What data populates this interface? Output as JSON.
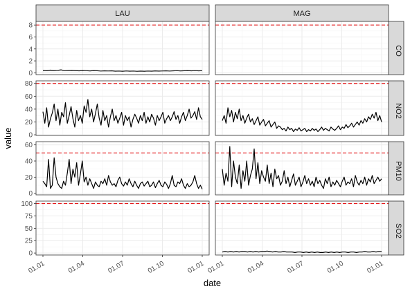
{
  "chart_data": {
    "type": "line",
    "layout": "facet_grid",
    "xlabel": "date",
    "ylabel": "value",
    "columns": [
      "LAU",
      "MAG"
    ],
    "rows": [
      "CO",
      "NO2",
      "PM10",
      "SO2"
    ],
    "x_ticks": [
      "01.01",
      "01.04",
      "01.07",
      "01.10",
      "01.01"
    ],
    "x_range": [
      "2018-01-01",
      "2019-01-01"
    ],
    "limit_color": "#e41a1c",
    "line_color": "#000000",
    "strip_color": "#d9d9d9",
    "panels_config": [
      {
        "row": "CO",
        "ylim": [
          -0.3,
          8.6
        ],
        "y_ticks": [
          0,
          2,
          4,
          6,
          8
        ],
        "limit": 8
      },
      {
        "row": "NO2",
        "ylim": [
          -1,
          84
        ],
        "y_ticks": [
          0,
          20,
          40,
          60,
          80
        ],
        "limit": 80
      },
      {
        "row": "PM10",
        "ylim": [
          -2,
          64
        ],
        "y_ticks": [
          0,
          20,
          40,
          60
        ],
        "limit": 50
      },
      {
        "row": "SO2",
        "ylim": [
          -4,
          105
        ],
        "y_ticks": [
          0,
          25,
          50,
          75,
          100
        ],
        "limit": 100
      }
    ],
    "series": [
      {
        "row": "CO",
        "column": "LAU",
        "values": [
          0.4,
          0.35,
          0.45,
          0.38,
          0.42,
          0.5,
          0.36,
          0.4,
          0.44,
          0.38,
          0.34,
          0.4,
          0.36,
          0.32,
          0.38,
          0.35,
          0.3,
          0.34,
          0.31,
          0.33,
          0.28,
          0.3,
          0.27,
          0.31,
          0.28,
          0.3,
          0.26,
          0.29,
          0.27,
          0.3,
          0.28,
          0.32,
          0.29,
          0.31,
          0.34,
          0.3,
          0.33,
          0.36,
          0.32,
          0.35,
          0.38,
          0.34,
          0.37,
          0.33,
          0.36
        ]
      },
      {
        "row": "NO2",
        "column": "LAU",
        "values": [
          36,
          18,
          42,
          12,
          25,
          34,
          48,
          22,
          40,
          15,
          35,
          28,
          50,
          18,
          30,
          44,
          25,
          12,
          38,
          22,
          30,
          18,
          45,
          35,
          55,
          28,
          40,
          20,
          33,
          48,
          26,
          15,
          38,
          22,
          30,
          12,
          28,
          40,
          22,
          30,
          18,
          26,
          35,
          15,
          30,
          22,
          28,
          12,
          24,
          32,
          26,
          18,
          30,
          22,
          35,
          18,
          28,
          20,
          32,
          26,
          15,
          30,
          22,
          28,
          35,
          18,
          25,
          30,
          22,
          28,
          36,
          24,
          30,
          18,
          28,
          35,
          22,
          30,
          40,
          26,
          30,
          36,
          24,
          42,
          28,
          24
        ]
      },
      {
        "row": "NO2",
        "column": "MAG",
        "values": [
          22,
          30,
          18,
          42,
          28,
          38,
          20,
          35,
          25,
          40,
          22,
          30,
          18,
          26,
          32,
          20,
          25,
          16,
          22,
          28,
          15,
          20,
          24,
          14,
          18,
          22,
          12,
          16,
          20,
          10,
          14,
          12,
          8,
          10,
          6,
          12,
          8,
          10,
          5,
          9,
          7,
          11,
          6,
          8,
          10,
          5,
          8,
          6,
          10,
          7,
          9,
          5,
          8,
          12,
          7,
          10,
          8,
          6,
          12,
          9,
          7,
          10,
          14,
          8,
          12,
          10,
          16,
          11,
          14,
          18,
          12,
          16,
          20,
          15,
          22,
          18,
          25,
          20,
          28,
          24,
          32,
          26,
          35,
          22,
          30,
          20
        ]
      },
      {
        "row": "PM10",
        "column": "LAU",
        "values": [
          15,
          12,
          8,
          42,
          6,
          10,
          44,
          20,
          12,
          8,
          6,
          15,
          10,
          25,
          42,
          12,
          30,
          20,
          38,
          10,
          24,
          40,
          14,
          20,
          10,
          18,
          12,
          6,
          14,
          10,
          8,
          15,
          12,
          18,
          10,
          22,
          14,
          10,
          12,
          8,
          16,
          20,
          12,
          9,
          14,
          10,
          18,
          12,
          8,
          15,
          10,
          6,
          12,
          14,
          9,
          12,
          15,
          8,
          10,
          14,
          7,
          12,
          16,
          10,
          8,
          14,
          11,
          6,
          12,
          22,
          10,
          8,
          14,
          12,
          18,
          10,
          6,
          12,
          8,
          10,
          14,
          22,
          12,
          6,
          10,
          5
        ]
      },
      {
        "row": "PM10",
        "column": "MAG",
        "values": [
          30,
          10,
          25,
          15,
          58,
          8,
          40,
          20,
          12,
          35,
          6,
          28,
          15,
          40,
          10,
          22,
          30,
          55,
          18,
          38,
          12,
          28,
          20,
          15,
          35,
          12,
          25,
          8,
          30,
          18,
          22,
          10,
          15,
          28,
          12,
          20,
          8,
          16,
          24,
          10,
          15,
          20,
          8,
          14,
          22,
          12,
          18,
          10,
          15,
          8,
          20,
          12,
          16,
          10,
          6,
          18,
          12,
          20,
          8,
          14,
          10,
          16,
          12,
          8,
          15,
          20,
          10,
          14,
          12,
          18,
          8,
          22,
          14,
          10,
          16,
          12,
          20,
          10,
          18,
          14,
          22,
          12,
          16,
          20,
          15,
          18
        ]
      },
      {
        "row": "SO2",
        "column": "MAG",
        "values": [
          2,
          3,
          2,
          3,
          2,
          3,
          2,
          3,
          3,
          2,
          3,
          2,
          3,
          2,
          3,
          3,
          4,
          3,
          2,
          3,
          2,
          2,
          3,
          2,
          2,
          2,
          1,
          2,
          2,
          1,
          2,
          1,
          2,
          1,
          2,
          1,
          1,
          2,
          1,
          2,
          1,
          2,
          1,
          2,
          2,
          1,
          2,
          2,
          1,
          2,
          2,
          3,
          2,
          2,
          3,
          2,
          3,
          3
        ]
      }
    ]
  }
}
